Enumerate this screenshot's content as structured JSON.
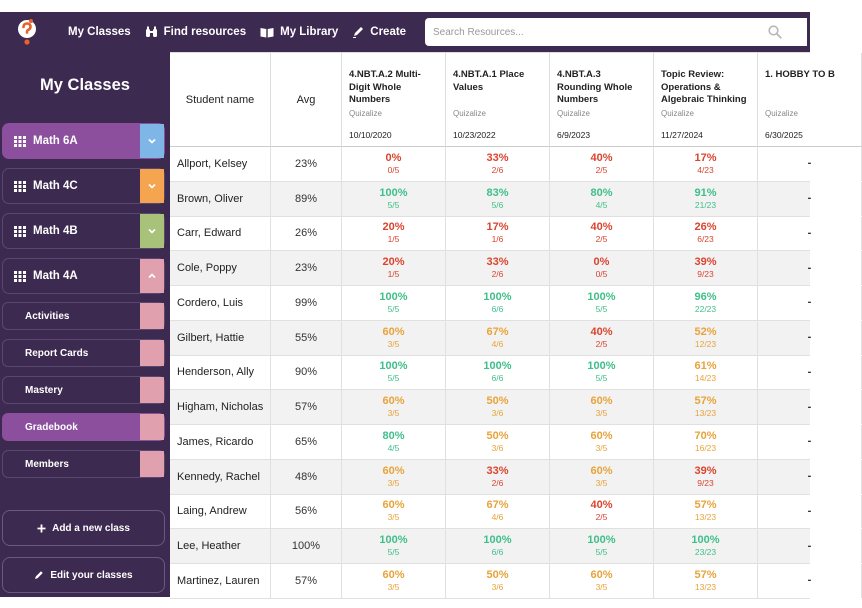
{
  "nav": {
    "logo_icon": "question-mark-logo",
    "items": [
      {
        "label": "My Classes",
        "icon": ""
      },
      {
        "label": "Find resources",
        "icon": "binoculars-icon"
      },
      {
        "label": "My Library",
        "icon": "book-icon"
      },
      {
        "label": "Create",
        "icon": "pen-icon"
      }
    ],
    "search_placeholder": "Search Resources..."
  },
  "sidebar": {
    "title": "My Classes",
    "classes": [
      {
        "label": "Math 6A",
        "tab_color": "#7eb6e8",
        "chevron": "down"
      },
      {
        "label": "Math 4C",
        "tab_color": "#f5a44f",
        "chevron": "down"
      },
      {
        "label": "Math 4B",
        "tab_color": "#a9c27a",
        "chevron": "down"
      },
      {
        "label": "Math 4A",
        "tab_color": "#e1a0ad",
        "chevron": "up"
      }
    ],
    "subitems": [
      "Activities",
      "Report Cards",
      "Mastery",
      "Gradebook",
      "Members"
    ],
    "add_class_label": "Add a new class",
    "edit_classes_label": "Edit your classes"
  },
  "gradebook": {
    "col_name": "Student name",
    "col_avg": "Avg",
    "assignments": [
      {
        "title": "4.NBT.A.2 Multi-Digit Whole Numbers",
        "source": "Quizalize",
        "date": "10/10/2020"
      },
      {
        "title": "4.NBT.A.1 Place Values",
        "source": "Quizalize",
        "date": "10/23/2022"
      },
      {
        "title": "4.NBT.A.3 Rounding Whole Numbers",
        "source": "Quizalize",
        "date": "6/9/2023"
      },
      {
        "title": "Topic Review: Operations & Algebraic Thinking",
        "source": "Quizalize",
        "date": "11/27/2024"
      },
      {
        "title": "1. HOBBY TO B",
        "source": "Quizalize",
        "date": "6/30/2025"
      }
    ],
    "students": [
      {
        "name": "Allport, Kelsey",
        "avg": "23%",
        "scores": [
          [
            "0%",
            "0/5"
          ],
          [
            "33%",
            "2/6"
          ],
          [
            "40%",
            "2/5"
          ],
          [
            "17%",
            "4/23"
          ],
          [
            "-",
            ""
          ]
        ]
      },
      {
        "name": "Brown, Oliver",
        "avg": "89%",
        "scores": [
          [
            "100%",
            "5/5"
          ],
          [
            "83%",
            "5/6"
          ],
          [
            "80%",
            "4/5"
          ],
          [
            "91%",
            "21/23"
          ],
          [
            "-",
            ""
          ]
        ]
      },
      {
        "name": "Carr, Edward",
        "avg": "26%",
        "scores": [
          [
            "20%",
            "1/5"
          ],
          [
            "17%",
            "1/6"
          ],
          [
            "40%",
            "2/5"
          ],
          [
            "26%",
            "6/23"
          ],
          [
            "-",
            ""
          ]
        ]
      },
      {
        "name": "Cole, Poppy",
        "avg": "23%",
        "scores": [
          [
            "20%",
            "1/5"
          ],
          [
            "33%",
            "2/6"
          ],
          [
            "0%",
            "0/5"
          ],
          [
            "39%",
            "9/23"
          ],
          [
            "-",
            ""
          ]
        ]
      },
      {
        "name": "Cordero, Luis",
        "avg": "99%",
        "scores": [
          [
            "100%",
            "5/5"
          ],
          [
            "100%",
            "6/6"
          ],
          [
            "100%",
            "5/5"
          ],
          [
            "96%",
            "22/23"
          ],
          [
            "-",
            ""
          ]
        ]
      },
      {
        "name": "Gilbert, Hattie",
        "avg": "55%",
        "scores": [
          [
            "60%",
            "3/5"
          ],
          [
            "67%",
            "4/6"
          ],
          [
            "40%",
            "2/5"
          ],
          [
            "52%",
            "12/23"
          ],
          [
            "-",
            ""
          ]
        ]
      },
      {
        "name": "Henderson, Ally",
        "avg": "90%",
        "scores": [
          [
            "100%",
            "5/5"
          ],
          [
            "100%",
            "6/6"
          ],
          [
            "100%",
            "5/5"
          ],
          [
            "61%",
            "14/23"
          ],
          [
            "-",
            ""
          ]
        ]
      },
      {
        "name": "Higham, Nicholas",
        "avg": "57%",
        "scores": [
          [
            "60%",
            "3/5"
          ],
          [
            "50%",
            "3/6"
          ],
          [
            "60%",
            "3/5"
          ],
          [
            "57%",
            "13/23"
          ],
          [
            "-",
            ""
          ]
        ]
      },
      {
        "name": "James, Ricardo",
        "avg": "65%",
        "scores": [
          [
            "80%",
            "4/5"
          ],
          [
            "50%",
            "3/6"
          ],
          [
            "60%",
            "3/5"
          ],
          [
            "70%",
            "16/23"
          ],
          [
            "-",
            ""
          ]
        ]
      },
      {
        "name": "Kennedy, Rachel",
        "avg": "48%",
        "scores": [
          [
            "60%",
            "3/5"
          ],
          [
            "33%",
            "2/6"
          ],
          [
            "60%",
            "3/5"
          ],
          [
            "39%",
            "9/23"
          ],
          [
            "-",
            ""
          ]
        ]
      },
      {
        "name": "Laing, Andrew",
        "avg": "56%",
        "scores": [
          [
            "60%",
            "3/5"
          ],
          [
            "67%",
            "4/6"
          ],
          [
            "40%",
            "2/5"
          ],
          [
            "57%",
            "13/23"
          ],
          [
            "-",
            ""
          ]
        ]
      },
      {
        "name": "Lee, Heather",
        "avg": "100%",
        "scores": [
          [
            "100%",
            "5/5"
          ],
          [
            "100%",
            "6/6"
          ],
          [
            "100%",
            "5/5"
          ],
          [
            "100%",
            "23/23"
          ],
          [
            "-",
            ""
          ]
        ]
      },
      {
        "name": "Martinez, Lauren",
        "avg": "57%",
        "scores": [
          [
            "60%",
            "3/5"
          ],
          [
            "50%",
            "3/6"
          ],
          [
            "60%",
            "3/5"
          ],
          [
            "57%",
            "13/23"
          ],
          [
            "-",
            ""
          ]
        ]
      }
    ]
  },
  "colors": {
    "red": "#d9452f",
    "orange": "#e8a33a",
    "green": "#3fbf8a",
    "accent": "#8b4f9e",
    "nav_bg": "#3d2a50"
  }
}
